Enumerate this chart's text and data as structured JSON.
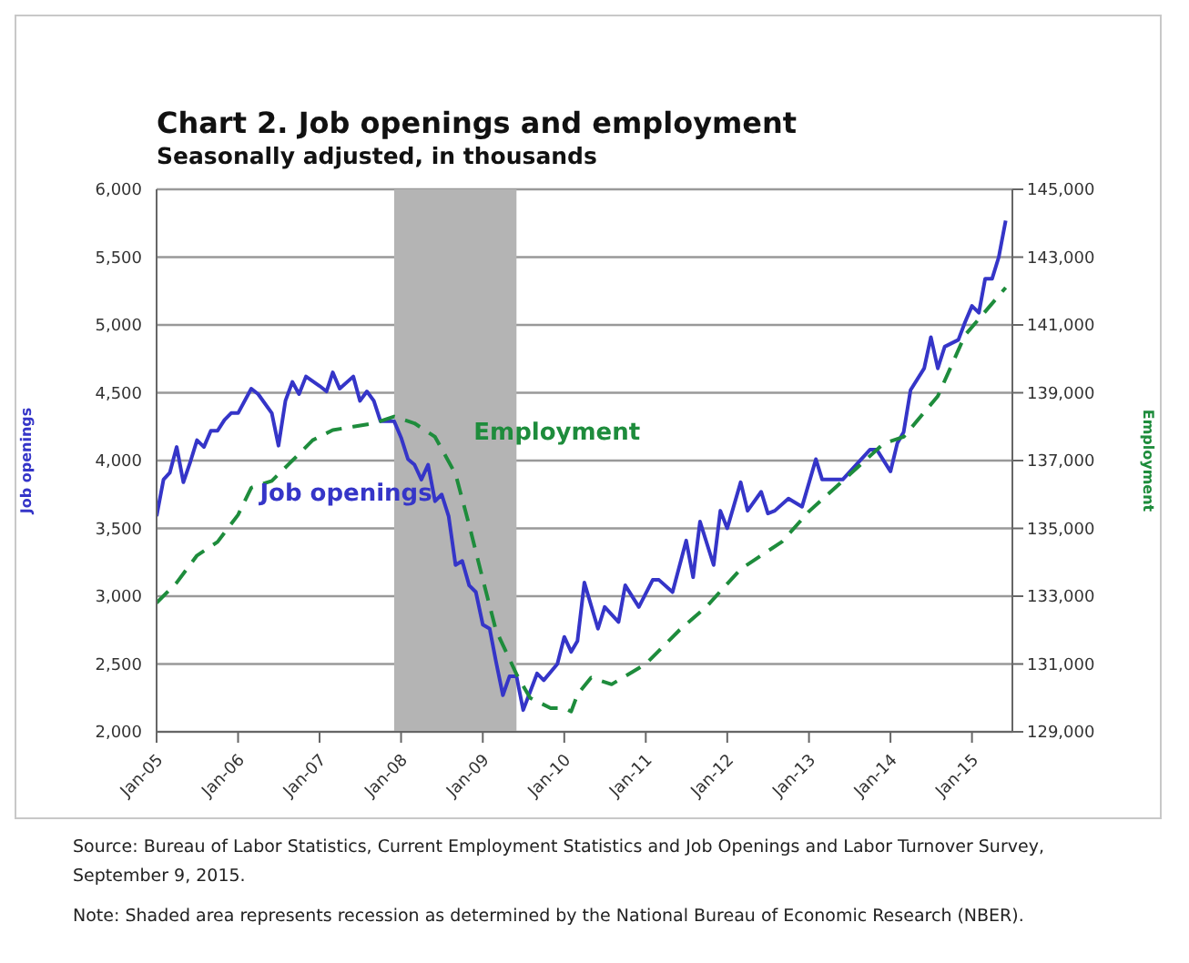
{
  "chart_data": {
    "type": "line",
    "title": "Chart 2. Job openings and employment",
    "subtitle": "Seasonally adjusted, in thousands",
    "ylabel": "Job openings",
    "y2label": "Employment",
    "xlim": [
      "2005-01",
      "2015-07"
    ],
    "xticks": [
      {
        "value": "2005-01",
        "label": "Jan-05"
      },
      {
        "value": "2006-01",
        "label": "Jan-06"
      },
      {
        "value": "2007-01",
        "label": "Jan-07"
      },
      {
        "value": "2008-01",
        "label": "Jan-08"
      },
      {
        "value": "2009-01",
        "label": "Jan-09"
      },
      {
        "value": "2010-01",
        "label": "Jan-10"
      },
      {
        "value": "2011-01",
        "label": "Jan-11"
      },
      {
        "value": "2012-01",
        "label": "Jan-12"
      },
      {
        "value": "2013-01",
        "label": "Jan-13"
      },
      {
        "value": "2014-01",
        "label": "Jan-14"
      },
      {
        "value": "2015-01",
        "label": "Jan-15"
      }
    ],
    "ylim": [
      2000,
      6000
    ],
    "yticks": [
      {
        "value": 2000,
        "label": "2,000"
      },
      {
        "value": 2500,
        "label": "2,500"
      },
      {
        "value": 3000,
        "label": "3,000"
      },
      {
        "value": 3500,
        "label": "3,500"
      },
      {
        "value": 4000,
        "label": "4,000"
      },
      {
        "value": 4500,
        "label": "4,500"
      },
      {
        "value": 5000,
        "label": "5,000"
      },
      {
        "value": 5500,
        "label": "5,500"
      },
      {
        "value": 6000,
        "label": "6,000"
      }
    ],
    "y2lim": [
      129000,
      145000
    ],
    "y2ticks": [
      {
        "value": 129000,
        "label": "129,000"
      },
      {
        "value": 131000,
        "label": "131,000"
      },
      {
        "value": 133000,
        "label": "133,000"
      },
      {
        "value": 135000,
        "label": "135,000"
      },
      {
        "value": 137000,
        "label": "137,000"
      },
      {
        "value": 139000,
        "label": "139,000"
      },
      {
        "value": 141000,
        "label": "141,000"
      },
      {
        "value": 143000,
        "label": "143,000"
      },
      {
        "value": 145000,
        "label": "145,000"
      }
    ],
    "grid": "y",
    "marker": "none",
    "bands": [
      {
        "axis": "x",
        "from": "2007-12",
        "to": "2009-06",
        "color": "#b4b4b4"
      }
    ],
    "series": [
      {
        "name": "Job openings",
        "color": "#3535c8",
        "line_style": "solid",
        "x": [
          "2005-01",
          "2005-02",
          "2005-03",
          "2005-04",
          "2005-05",
          "2005-06",
          "2005-07",
          "2005-08",
          "2005-09",
          "2005-10",
          "2005-11",
          "2005-12",
          "2006-01",
          "2006-03",
          "2006-04",
          "2006-06",
          "2006-07",
          "2006-08",
          "2006-09",
          "2006-10",
          "2006-11",
          "2007-01",
          "2007-02",
          "2007-03",
          "2007-04",
          "2007-06",
          "2007-07",
          "2007-08",
          "2007-09",
          "2007-10",
          "2007-12",
          "2008-01",
          "2008-02",
          "2008-03",
          "2008-04",
          "2008-05",
          "2008-06",
          "2008-07",
          "2008-08",
          "2008-09",
          "2008-10",
          "2008-11",
          "2008-12",
          "2009-01",
          "2009-02",
          "2009-03",
          "2009-04",
          "2009-05",
          "2009-06",
          "2009-07",
          "2009-09",
          "2009-10",
          "2009-12",
          "2010-01",
          "2010-02",
          "2010-03",
          "2010-04",
          "2010-06",
          "2010-07",
          "2010-09",
          "2010-10",
          "2010-12",
          "2011-02",
          "2011-03",
          "2011-05",
          "2011-07",
          "2011-08",
          "2011-09",
          "2011-11",
          "2011-12",
          "2012-01",
          "2012-03",
          "2012-04",
          "2012-06",
          "2012-07",
          "2012-08",
          "2012-10",
          "2012-12",
          "2013-02",
          "2013-03",
          "2013-06",
          "2013-10",
          "2013-11",
          "2014-01",
          "2014-02",
          "2014-03",
          "2014-04",
          "2014-06",
          "2014-07",
          "2014-08",
          "2014-09",
          "2014-11",
          "2014-12",
          "2015-01",
          "2015-02",
          "2015-03",
          "2015-04",
          "2015-05",
          "2015-06"
        ],
        "values": [
          3590,
          3860,
          3910,
          4100,
          3840,
          3990,
          4150,
          4100,
          4220,
          4220,
          4300,
          4350,
          4350,
          4530,
          4490,
          4350,
          4110,
          4440,
          4580,
          4490,
          4620,
          4550,
          4510,
          4650,
          4530,
          4620,
          4440,
          4510,
          4440,
          4290,
          4290,
          4170,
          4010,
          3970,
          3860,
          3970,
          3700,
          3750,
          3590,
          3230,
          3260,
          3080,
          3030,
          2790,
          2760,
          2520,
          2270,
          2410,
          2410,
          2160,
          2430,
          2380,
          2500,
          2700,
          2590,
          2670,
          3100,
          2760,
          2920,
          2810,
          3080,
          2920,
          3120,
          3120,
          3030,
          3410,
          3140,
          3550,
          3230,
          3630,
          3500,
          3840,
          3630,
          3770,
          3610,
          3630,
          3720,
          3660,
          4010,
          3860,
          3860,
          4080,
          4080,
          3920,
          4130,
          4210,
          4520,
          4680,
          4910,
          4680,
          4840,
          4890,
          5020,
          5140,
          5090,
          5340,
          5340,
          5500,
          5770
        ]
      },
      {
        "name": "Employment",
        "color": "#1e8c3c",
        "axis": "y2",
        "line_style": "dashed",
        "x": [
          "2005-01",
          "2005-04",
          "2005-07",
          "2005-10",
          "2006-01",
          "2006-03",
          "2006-06",
          "2006-09",
          "2006-12",
          "2007-03",
          "2007-06",
          "2007-09",
          "2007-12",
          "2008-03",
          "2008-06",
          "2008-09",
          "2008-11",
          "2009-01",
          "2009-03",
          "2009-06",
          "2009-08",
          "2009-11",
          "2010-01",
          "2010-02",
          "2010-03",
          "2010-05",
          "2010-08",
          "2011-01",
          "2011-06",
          "2011-10",
          "2012-03",
          "2012-09",
          "2013-01",
          "2013-06",
          "2013-12",
          "2014-03",
          "2014-08",
          "2014-12",
          "2015-06"
        ],
        "values": [
          132800,
          133400,
          134200,
          134600,
          135400,
          136200,
          136400,
          137000,
          137600,
          137900,
          138000,
          138100,
          138300,
          138100,
          137700,
          136600,
          135100,
          133500,
          132000,
          130700,
          130000,
          129700,
          129700,
          129600,
          130100,
          130600,
          130400,
          131000,
          132000,
          132700,
          133800,
          134600,
          135500,
          136400,
          137500,
          137700,
          138900,
          140700,
          142100
        ]
      }
    ],
    "annotations": [
      "Source: Bureau of Labor Statistics, Current Employment Statistics and Job Openings and Labor Turnover Survey, September 9, 2015.",
      "Note: Shaded area represents recession as determined by the National Bureau of Economic Research (NBER)."
    ]
  }
}
